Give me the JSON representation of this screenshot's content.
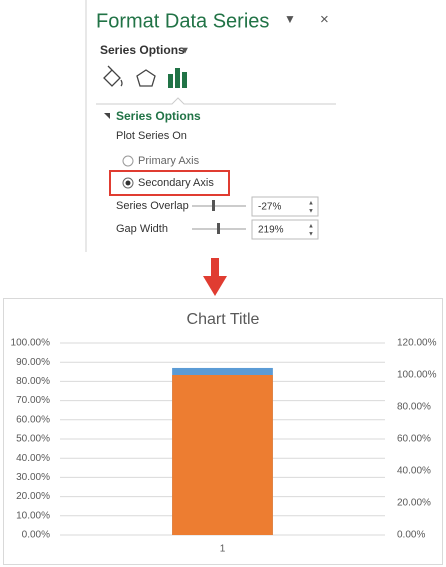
{
  "pane": {
    "title": "Format Data Series",
    "menu": "Series Options",
    "section": "Series Options",
    "plot_on_label": "Plot Series On",
    "options": [
      "Primary Axis",
      "Secondary Axis"
    ],
    "fields": [
      {
        "label": "Series Overlap",
        "value": "-27%"
      },
      {
        "label": "Gap Width",
        "value": "219%"
      }
    ]
  },
  "chart_data": {
    "type": "bar",
    "title": "Chart Title",
    "categories": [
      "1"
    ],
    "series": [
      {
        "color": "#5b9bd5",
        "values": [
          87
        ]
      },
      {
        "color": "#ed7d31",
        "values": [
          100
        ],
        "axis": "y2"
      }
    ],
    "ylim": [
      0,
      100
    ],
    "yticks": [
      {
        "value": 0,
        "label": "0.00%"
      },
      {
        "value": 10,
        "label": "10.00%"
      },
      {
        "value": 20,
        "label": "20.00%"
      },
      {
        "value": 30,
        "label": "30.00%"
      },
      {
        "value": 40,
        "label": "40.00%"
      },
      {
        "value": 50,
        "label": "50.00%"
      },
      {
        "value": 60,
        "label": "60.00%"
      },
      {
        "value": 70,
        "label": "70.00%"
      },
      {
        "value": 80,
        "label": "80.00%"
      },
      {
        "value": 90,
        "label": "90.00%"
      },
      {
        "value": 100,
        "label": "100.00%"
      }
    ],
    "y2lim": [
      0,
      120
    ],
    "y2ticks": [
      {
        "value": 0,
        "label": "0.00%"
      },
      {
        "value": 20,
        "label": "20.00%"
      },
      {
        "value": 40,
        "label": "40.00%"
      },
      {
        "value": 60,
        "label": "60.00%"
      },
      {
        "value": 80,
        "label": "80.00%"
      },
      {
        "value": 100,
        "label": "100.00%"
      },
      {
        "value": 120,
        "label": "120.00%"
      }
    ],
    "grid": true
  }
}
